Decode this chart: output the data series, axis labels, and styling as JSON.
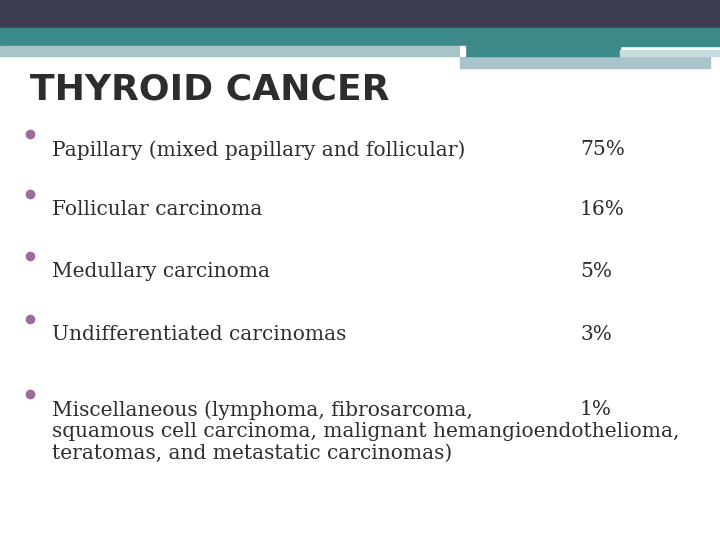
{
  "title": "THYROID CANCER",
  "title_fontsize": 26,
  "title_color": "#2d2d2d",
  "title_bold": true,
  "background_color": "#ffffff",
  "bullet_color": "#9b6b9b",
  "text_color": "#2d2d2d",
  "bullet_fontsize": 14.5,
  "pct_fontsize": 14.5,
  "header_navy": "#3d3d52",
  "header_teal": "#3d8a8a",
  "header_light1": "#a8c4c8",
  "header_light2": "#c8dde0",
  "header_white_gap": "#ffffff",
  "bullets": [
    {
      "text": "Papillary (mixed papillary and follicular)",
      "percent": "75%",
      "extra_lines": []
    },
    {
      "text": "Follicular carcinoma",
      "percent": "16%",
      "extra_lines": []
    },
    {
      "text": "Medullary carcinoma",
      "percent": "5%",
      "extra_lines": []
    },
    {
      "text": "Undifferentiated carcinomas",
      "percent": "3%",
      "extra_lines": []
    },
    {
      "text": "Miscellaneous (lymphoma, fibrosarcoma,",
      "percent": "1%",
      "extra_lines": [
        "squamous cell carcinoma, malignant hemangioendothelioma,",
        "teratomas, and metastatic carcinomas)"
      ]
    }
  ]
}
